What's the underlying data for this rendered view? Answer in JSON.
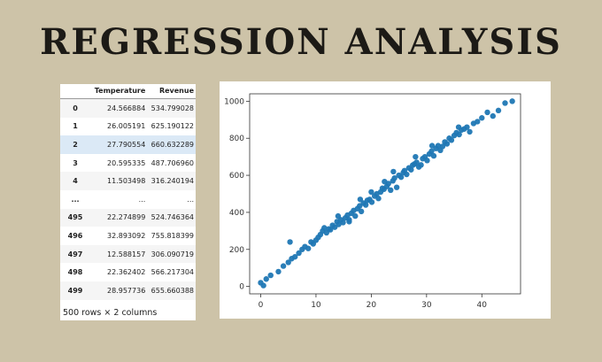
{
  "title": "REGRESSION ANALYSIS",
  "table": {
    "columns": [
      "",
      "Temperature",
      "Revenue"
    ],
    "rows": [
      [
        "0",
        "24.566884",
        "534.799028"
      ],
      [
        "1",
        "26.005191",
        "625.190122"
      ],
      [
        "2",
        "27.790554",
        "660.632289"
      ],
      [
        "3",
        "20.595335",
        "487.706960"
      ],
      [
        "4",
        "11.503498",
        "316.240194"
      ],
      [
        "...",
        "...",
        "..."
      ],
      [
        "495",
        "22.274899",
        "524.746364"
      ],
      [
        "496",
        "32.893092",
        "755.818399"
      ],
      [
        "497",
        "12.588157",
        "306.090719"
      ],
      [
        "498",
        "22.362402",
        "566.217304"
      ],
      [
        "499",
        "28.957736",
        "655.660388"
      ]
    ],
    "caption": "500 rows × 2 columns"
  },
  "chart_data": {
    "type": "scatter",
    "xlim": [
      -2,
      47
    ],
    "ylim": [
      -40,
      1040
    ],
    "x_ticks": [
      0,
      10,
      20,
      30,
      40
    ],
    "y_ticks": [
      0,
      200,
      400,
      600,
      800,
      1000
    ],
    "grid": false,
    "color": "#1f77b4",
    "points": [
      [
        0,
        20
      ],
      [
        0.5,
        5
      ],
      [
        1,
        40
      ],
      [
        1.8,
        60
      ],
      [
        3.2,
        80
      ],
      [
        4.1,
        110
      ],
      [
        5.0,
        130
      ],
      [
        5.6,
        150
      ],
      [
        6.2,
        160
      ],
      [
        5.3,
        240
      ],
      [
        6.9,
        180
      ],
      [
        7.5,
        200
      ],
      [
        8.0,
        215
      ],
      [
        8.6,
        205
      ],
      [
        9.1,
        240
      ],
      [
        9.5,
        230
      ],
      [
        10.0,
        250
      ],
      [
        10.4,
        265
      ],
      [
        10.8,
        280
      ],
      [
        11.2,
        300
      ],
      [
        11.5,
        316
      ],
      [
        11.9,
        290
      ],
      [
        12.3,
        310
      ],
      [
        12.6,
        306
      ],
      [
        13.0,
        330
      ],
      [
        13.4,
        320
      ],
      [
        13.8,
        350
      ],
      [
        14.1,
        335
      ],
      [
        14.5,
        360
      ],
      [
        14.9,
        345
      ],
      [
        15.3,
        370
      ],
      [
        15.7,
        385
      ],
      [
        16.0,
        360
      ],
      [
        16.4,
        395
      ],
      [
        16.8,
        410
      ],
      [
        17.1,
        380
      ],
      [
        17.5,
        420
      ],
      [
        17.9,
        435
      ],
      [
        18.2,
        405
      ],
      [
        18.6,
        450
      ],
      [
        19.0,
        440
      ],
      [
        19.3,
        465
      ],
      [
        19.7,
        470
      ],
      [
        20.1,
        455
      ],
      [
        20.6,
        488
      ],
      [
        21.0,
        500
      ],
      [
        21.3,
        475
      ],
      [
        21.7,
        510
      ],
      [
        22.0,
        530
      ],
      [
        22.3,
        525
      ],
      [
        22.4,
        566
      ],
      [
        22.8,
        540
      ],
      [
        23.1,
        555
      ],
      [
        23.5,
        520
      ],
      [
        23.9,
        570
      ],
      [
        24.2,
        585
      ],
      [
        24.6,
        535
      ],
      [
        25.0,
        600
      ],
      [
        25.4,
        590
      ],
      [
        25.8,
        615
      ],
      [
        26.0,
        625
      ],
      [
        26.4,
        605
      ],
      [
        26.8,
        640
      ],
      [
        27.2,
        630
      ],
      [
        27.5,
        655
      ],
      [
        27.8,
        661
      ],
      [
        28.2,
        670
      ],
      [
        28.6,
        645
      ],
      [
        29.0,
        656
      ],
      [
        29.3,
        690
      ],
      [
        29.7,
        700
      ],
      [
        30.1,
        680
      ],
      [
        30.5,
        715
      ],
      [
        30.9,
        730
      ],
      [
        31.3,
        705
      ],
      [
        31.7,
        745
      ],
      [
        32.1,
        760
      ],
      [
        32.5,
        735
      ],
      [
        32.9,
        756
      ],
      [
        33.3,
        780
      ],
      [
        33.7,
        770
      ],
      [
        34.1,
        800
      ],
      [
        34.5,
        790
      ],
      [
        35.0,
        815
      ],
      [
        35.4,
        830
      ],
      [
        35.9,
        820
      ],
      [
        36.3,
        845
      ],
      [
        36.8,
        850
      ],
      [
        37.3,
        860
      ],
      [
        37.8,
        835
      ],
      [
        38.5,
        880
      ],
      [
        39.2,
        890
      ],
      [
        40.0,
        910
      ],
      [
        41.0,
        940
      ],
      [
        42.0,
        920
      ],
      [
        43.0,
        950
      ],
      [
        45.5,
        1000
      ],
      [
        44.2,
        990
      ],
      [
        35.8,
        860
      ],
      [
        16.0,
        350
      ],
      [
        24.0,
        620
      ],
      [
        20.0,
        510
      ],
      [
        18.0,
        470
      ],
      [
        28.0,
        700
      ],
      [
        31.0,
        760
      ],
      [
        14.0,
        380
      ]
    ]
  }
}
